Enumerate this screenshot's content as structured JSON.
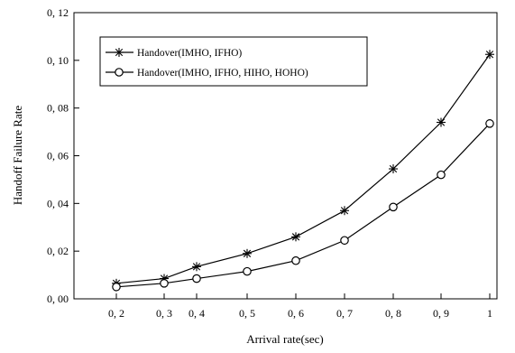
{
  "chart_data": {
    "type": "line",
    "xlabel": "Arrival rate(sec)",
    "ylabel": "Handoff Failure Rate",
    "x": [
      0.2,
      0.3,
      0.4,
      0.5,
      0.6,
      0.7,
      0.8,
      0.9,
      1.0
    ],
    "x_tick_labels": [
      "0, 2",
      "0, 3",
      "0, 4",
      "0, 5",
      "0, 6",
      "0, 7",
      "0, 8",
      "0, 9",
      "1"
    ],
    "ylim": [
      0,
      0.12
    ],
    "y_ticks": [
      0,
      0.02,
      0.04,
      0.06,
      0.08,
      0.1,
      0.12
    ],
    "y_tick_labels": [
      "0, 00",
      "0, 02",
      "0, 04",
      "0, 06",
      "0, 08",
      "0, 10",
      "0, 12"
    ],
    "grid": false,
    "legend_position": "top-left",
    "series": [
      {
        "name": "Handover(IMHO, IFHO)",
        "marker": "asterisk",
        "color": "#000000",
        "values": [
          0.0065,
          0.0085,
          0.0135,
          0.019,
          0.026,
          0.037,
          0.0545,
          0.074,
          0.1025
        ]
      },
      {
        "name": "Handover(IMHO, IFHO, HIHO, HOHO)",
        "marker": "circle",
        "color": "#000000",
        "values": [
          0.005,
          0.0065,
          0.0085,
          0.0115,
          0.016,
          0.0245,
          0.0385,
          0.052,
          0.0735
        ]
      }
    ]
  }
}
